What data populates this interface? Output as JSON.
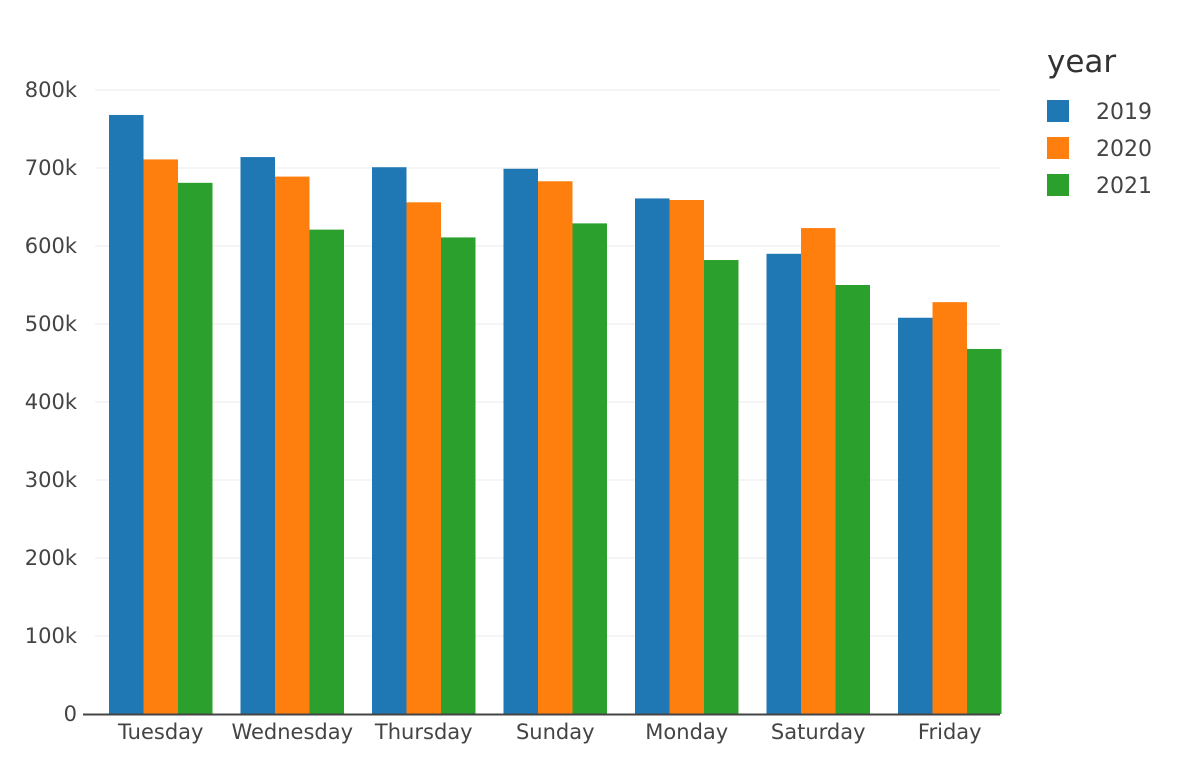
{
  "chart_data": {
    "type": "bar",
    "categories": [
      "Tuesday",
      "Wednesday",
      "Thursday",
      "Sunday",
      "Monday",
      "Saturday",
      "Friday"
    ],
    "series": [
      {
        "name": "2019",
        "color": "#1f77b4",
        "values": [
          768000,
          714000,
          701000,
          699000,
          661000,
          590000,
          508000
        ]
      },
      {
        "name": "2020",
        "color": "#ff7f0e",
        "values": [
          711000,
          689000,
          656000,
          683000,
          659000,
          623000,
          528000
        ]
      },
      {
        "name": "2021",
        "color": "#2ca02c",
        "values": [
          681000,
          621000,
          611000,
          629000,
          582000,
          550000,
          468000
        ]
      }
    ],
    "title": "",
    "xlabel": "",
    "ylabel": "",
    "ylim": [
      0,
      800000
    ],
    "yticks": [
      0,
      100000,
      200000,
      300000,
      400000,
      500000,
      600000,
      700000,
      800000
    ],
    "ytick_labels": [
      "0",
      "100k",
      "200k",
      "300k",
      "400k",
      "500k",
      "600k",
      "700k",
      "800k"
    ],
    "grid": true,
    "legend": {
      "title": "year",
      "placement": "top-right"
    }
  }
}
